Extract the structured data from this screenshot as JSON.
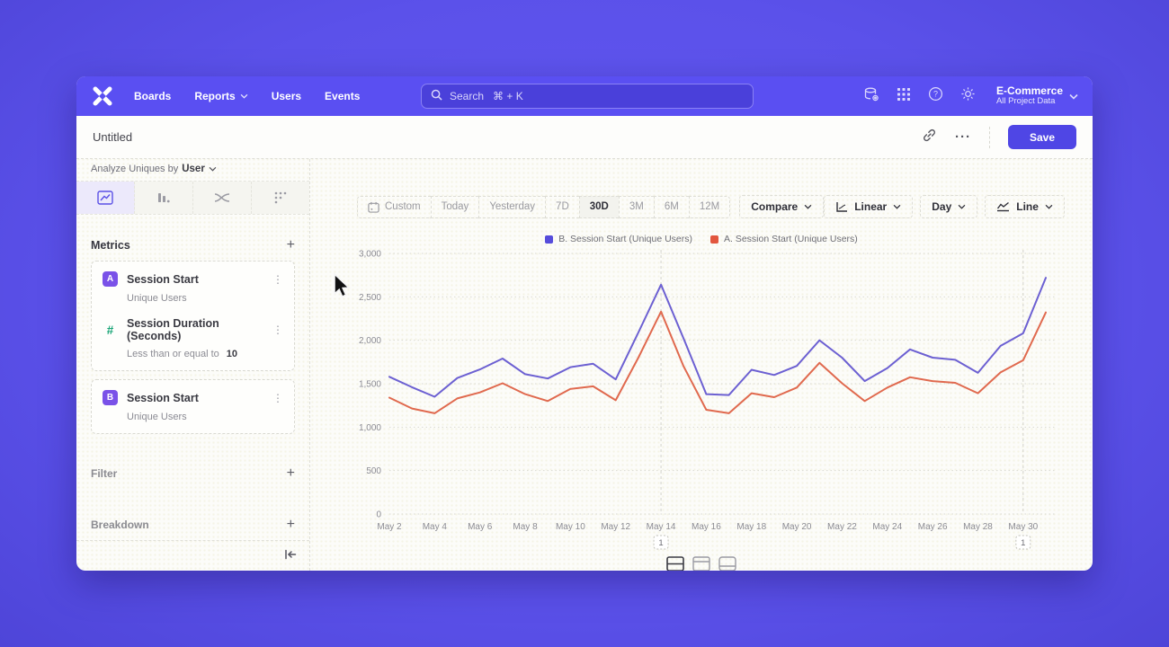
{
  "nav": {
    "logo_name": "mixpanel-logo",
    "items": [
      {
        "label": "Boards",
        "chevron": false
      },
      {
        "label": "Reports",
        "chevron": true
      },
      {
        "label": "Users",
        "chevron": false
      },
      {
        "label": "Events",
        "chevron": false
      }
    ],
    "search": {
      "placeholder": "Search",
      "shortcut": "⌘ + K"
    },
    "project": {
      "name": "E-Commerce",
      "subtitle": "All Project Data"
    }
  },
  "header": {
    "title": "Untitled",
    "more_label": "···",
    "save_label": "Save"
  },
  "sidebar": {
    "analyze_prefix": "Analyze Uniques by",
    "analyze_value": "User",
    "metrics": {
      "title": "Metrics",
      "cards": [
        {
          "badge": "A",
          "title": "Session Start",
          "subtitle": "Unique Users",
          "filter_title": "Session Duration (Seconds)",
          "filter_condition": "Less than or equal to",
          "filter_value": "10"
        },
        {
          "badge": "B",
          "title": "Session Start",
          "subtitle": "Unique Users"
        }
      ]
    },
    "filter_title": "Filter",
    "breakdown_title": "Breakdown"
  },
  "toolbar": {
    "ranges": [
      "Custom",
      "Today",
      "Yesterday",
      "7D",
      "30D",
      "3M",
      "6M",
      "12M"
    ],
    "active_range": "30D",
    "compare_label": "Compare",
    "scale_label": "Linear",
    "interval_label": "Day",
    "chart_type_label": "Line"
  },
  "chart_data": {
    "type": "line",
    "title": "",
    "x": [
      "May 2",
      "May 3",
      "May 4",
      "May 5",
      "May 6",
      "May 7",
      "May 8",
      "May 9",
      "May 10",
      "May 11",
      "May 12",
      "May 13",
      "May 14",
      "May 15",
      "May 16",
      "May 17",
      "May 18",
      "May 19",
      "May 20",
      "May 21",
      "May 22",
      "May 23",
      "May 24",
      "May 25",
      "May 26",
      "May 27",
      "May 28",
      "May 29",
      "May 30",
      "May 31"
    ],
    "x_label_every": 2,
    "series": [
      {
        "name": "B. Session Start (Unique Users)",
        "color": "#6c60d2",
        "legend_color": "#564cdb",
        "values": [
          1580,
          1460,
          1350,
          1565,
          1665,
          1790,
          1610,
          1560,
          1690,
          1730,
          1550,
          2090,
          2640,
          2020,
          1380,
          1370,
          1660,
          1600,
          1705,
          2000,
          1800,
          1530,
          1680,
          1895,
          1800,
          1775,
          1625,
          1935,
          2080,
          2720
        ]
      },
      {
        "name": "A. Session Start (Unique Users)",
        "color": "#e0694e",
        "legend_color": "#e2563e",
        "values": [
          1340,
          1215,
          1160,
          1330,
          1400,
          1505,
          1380,
          1300,
          1440,
          1470,
          1310,
          1800,
          2330,
          1700,
          1200,
          1160,
          1390,
          1345,
          1455,
          1740,
          1505,
          1300,
          1455,
          1575,
          1530,
          1510,
          1390,
          1630,
          1770,
          2320
        ]
      }
    ],
    "ylim": [
      0,
      3000
    ],
    "y_tick_values": [
      0,
      500,
      1000,
      1500,
      2000,
      2500,
      3000
    ],
    "y_tick_labels": [
      "0",
      "500",
      "1,000",
      "1,500",
      "2,000",
      "2,500",
      "3,000"
    ],
    "grid": "horizontal-dotted",
    "legend_position": "top-center"
  },
  "annotations": [
    {
      "label": "1",
      "x_index": 12
    },
    {
      "label": "1",
      "x_index": 28
    }
  ]
}
